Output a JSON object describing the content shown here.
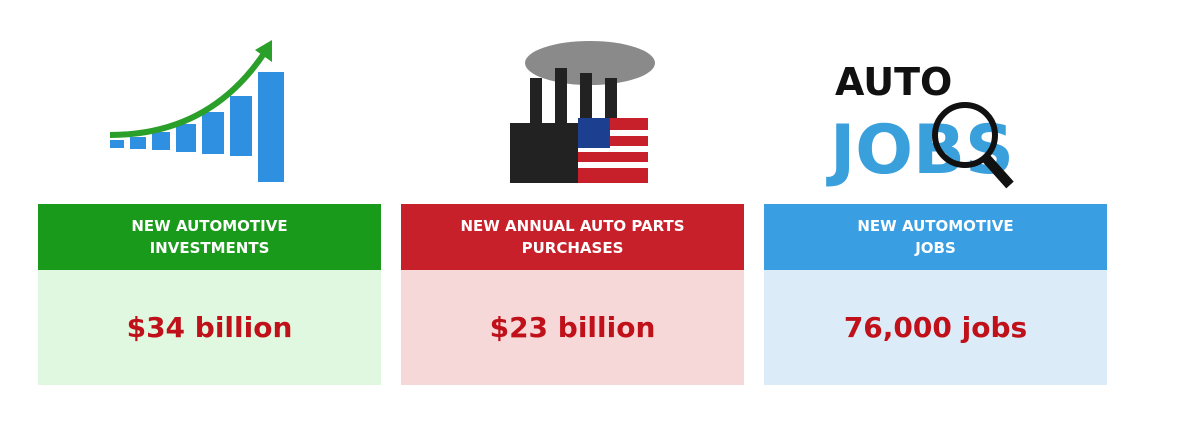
{
  "cards": [
    {
      "header": [
        "NEW AUTOMOTIVE",
        "INVESTMENTS"
      ],
      "value": "$34 billion"
    },
    {
      "header": [
        "NEW ANNUAL AUTO PARTS",
        "PURCHASES"
      ],
      "value": "$23 billion"
    },
    {
      "header": [
        "NEW AUTOMOTIVE",
        "JOBS"
      ],
      "value": "76,000 jobs"
    }
  ],
  "logo": {
    "top": "AUTO",
    "bottom": "JOBS"
  }
}
